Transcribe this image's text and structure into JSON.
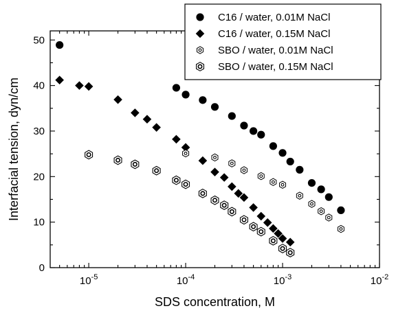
{
  "chart_data": {
    "type": "scatter",
    "title": "",
    "xlabel": "SDS concentration, M",
    "ylabel": "Interfacial tension, dyn/cm",
    "x_scale": "log",
    "xlim": [
      4e-06,
      0.01
    ],
    "ylim": [
      0,
      52
    ],
    "grid": false,
    "legend_position": "top-right",
    "x_ticks": [
      {
        "value": 1e-05,
        "base": "10",
        "exp": "-5"
      },
      {
        "value": 0.0001,
        "base": "10",
        "exp": "-4"
      },
      {
        "value": 0.001,
        "base": "10",
        "exp": "-3"
      },
      {
        "value": 0.01,
        "base": "10",
        "exp": "-2"
      }
    ],
    "y_ticks": [
      0,
      10,
      20,
      30,
      40,
      50
    ],
    "series": [
      {
        "name": "C16 / water, 0.01M NaCl",
        "marker": "circle",
        "color": "#000000",
        "points": [
          {
            "x": 5e-06,
            "y": 48.9
          },
          {
            "x": 8e-05,
            "y": 39.5
          },
          {
            "x": 0.0001,
            "y": 38.0
          },
          {
            "x": 0.00015,
            "y": 36.8
          },
          {
            "x": 0.0002,
            "y": 35.3
          },
          {
            "x": 0.0003,
            "y": 33.3
          },
          {
            "x": 0.0004,
            "y": 31.2
          },
          {
            "x": 0.0005,
            "y": 30.0
          },
          {
            "x": 0.0006,
            "y": 29.2
          },
          {
            "x": 0.0008,
            "y": 26.7
          },
          {
            "x": 0.001,
            "y": 25.2
          },
          {
            "x": 0.0012,
            "y": 23.3
          },
          {
            "x": 0.0015,
            "y": 21.5
          },
          {
            "x": 0.002,
            "y": 18.6
          },
          {
            "x": 0.0025,
            "y": 17.2
          },
          {
            "x": 0.003,
            "y": 15.5
          },
          {
            "x": 0.004,
            "y": 12.6
          }
        ]
      },
      {
        "name": "C16 / water, 0.15M NaCl",
        "marker": "diamond",
        "color": "#000000",
        "points": [
          {
            "x": 5e-06,
            "y": 41.2
          },
          {
            "x": 8e-06,
            "y": 40.0
          },
          {
            "x": 1e-05,
            "y": 39.8
          },
          {
            "x": 2e-05,
            "y": 36.9
          },
          {
            "x": 3e-05,
            "y": 34.0
          },
          {
            "x": 4e-05,
            "y": 32.6
          },
          {
            "x": 5e-05,
            "y": 30.8
          },
          {
            "x": 8e-05,
            "y": 28.2
          },
          {
            "x": 0.0001,
            "y": 26.4
          },
          {
            "x": 0.00015,
            "y": 23.5
          },
          {
            "x": 0.0002,
            "y": 21.0
          },
          {
            "x": 0.00025,
            "y": 19.8
          },
          {
            "x": 0.0003,
            "y": 17.8
          },
          {
            "x": 0.00035,
            "y": 16.3
          },
          {
            "x": 0.0004,
            "y": 15.4
          },
          {
            "x": 0.0005,
            "y": 13.2
          },
          {
            "x": 0.0006,
            "y": 11.3
          },
          {
            "x": 0.0007,
            "y": 9.9
          },
          {
            "x": 0.0008,
            "y": 8.6
          },
          {
            "x": 0.0009,
            "y": 7.5
          },
          {
            "x": 0.001,
            "y": 6.4
          },
          {
            "x": 0.0012,
            "y": 5.6
          }
        ]
      },
      {
        "name": "SBO / water, 0.01M NaCl",
        "marker": "hexagon-small",
        "color": "#000000",
        "points": [
          {
            "x": 0.0001,
            "y": 25.1
          },
          {
            "x": 0.0002,
            "y": 24.2
          },
          {
            "x": 0.0003,
            "y": 22.9
          },
          {
            "x": 0.0004,
            "y": 21.4
          },
          {
            "x": 0.0006,
            "y": 20.1
          },
          {
            "x": 0.0008,
            "y": 18.8
          },
          {
            "x": 0.001,
            "y": 18.2
          },
          {
            "x": 0.0015,
            "y": 15.8
          },
          {
            "x": 0.002,
            "y": 14.0
          },
          {
            "x": 0.0025,
            "y": 12.4
          },
          {
            "x": 0.003,
            "y": 11.0
          },
          {
            "x": 0.004,
            "y": 8.5
          }
        ]
      },
      {
        "name": "SBO / water, 0.15M NaCl",
        "marker": "hexagon-large",
        "color": "#000000",
        "points": [
          {
            "x": 1e-05,
            "y": 24.8
          },
          {
            "x": 2e-05,
            "y": 23.6
          },
          {
            "x": 3e-05,
            "y": 22.7
          },
          {
            "x": 5e-05,
            "y": 21.3
          },
          {
            "x": 8e-05,
            "y": 19.2
          },
          {
            "x": 0.0001,
            "y": 18.3
          },
          {
            "x": 0.00015,
            "y": 16.3
          },
          {
            "x": 0.0002,
            "y": 14.8
          },
          {
            "x": 0.00025,
            "y": 13.7
          },
          {
            "x": 0.0003,
            "y": 12.3
          },
          {
            "x": 0.0004,
            "y": 10.5
          },
          {
            "x": 0.0005,
            "y": 9.0
          },
          {
            "x": 0.0006,
            "y": 7.9
          },
          {
            "x": 0.0008,
            "y": 5.9
          },
          {
            "x": 0.001,
            "y": 4.2
          },
          {
            "x": 0.0012,
            "y": 3.3
          }
        ]
      }
    ]
  }
}
